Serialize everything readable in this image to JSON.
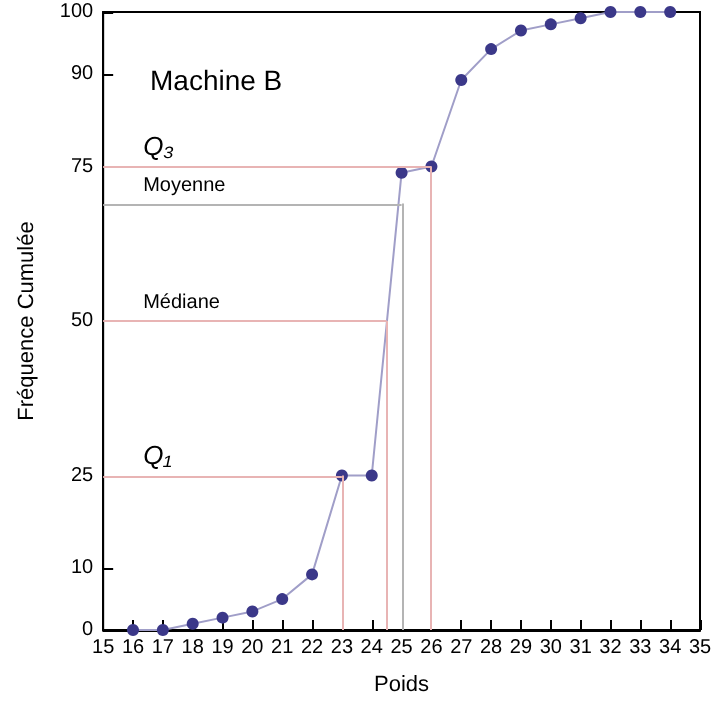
{
  "chart_data": {
    "type": "line",
    "title": "Machine B",
    "xlabel": "Poids",
    "ylabel": "Fréquence Cumulée",
    "x": [
      16,
      17,
      18,
      19,
      20,
      21,
      22,
      23,
      24,
      25,
      26,
      27,
      28,
      29,
      30,
      31,
      32,
      33,
      34
    ],
    "series": [
      {
        "color": "#3b3889",
        "values": [
          0,
          0,
          1,
          2,
          3,
          5,
          9,
          25,
          25,
          74,
          75,
          89,
          94,
          97,
          98,
          99,
          100,
          100,
          100
        ]
      }
    ],
    "xlim": [
      15,
      35
    ],
    "xticks": [
      15,
      16,
      17,
      18,
      19,
      20,
      21,
      22,
      23,
      24,
      25,
      26,
      27,
      28,
      29,
      30,
      31,
      32,
      33,
      34,
      35
    ],
    "ylim": [
      0,
      100
    ],
    "yticks": [
      0,
      10,
      25,
      50,
      75,
      90,
      100
    ],
    "marker": "circle",
    "grid": false,
    "ref_lines": [
      {
        "axis": "y",
        "value": 75,
        "label": "Q₃",
        "color": "#e8b4b4"
      },
      {
        "axis": "x",
        "value": 26,
        "color": "#e8b4b4"
      },
      {
        "axis": "y",
        "value": 69,
        "label": "Moyenne",
        "color": "#b4b4b4"
      },
      {
        "axis": "x",
        "value": 25,
        "color": "#b4b4b4"
      },
      {
        "axis": "y",
        "value": 50,
        "label": "Médiane",
        "color": "#e8b4b4"
      },
      {
        "axis": "x",
        "value": 24.5,
        "color": "#e8b4b4"
      },
      {
        "axis": "y",
        "value": 25,
        "label": "Q₁",
        "color": "#e8b4b4"
      },
      {
        "axis": "x",
        "value": 23,
        "color": "#e8b4b4"
      }
    ]
  }
}
